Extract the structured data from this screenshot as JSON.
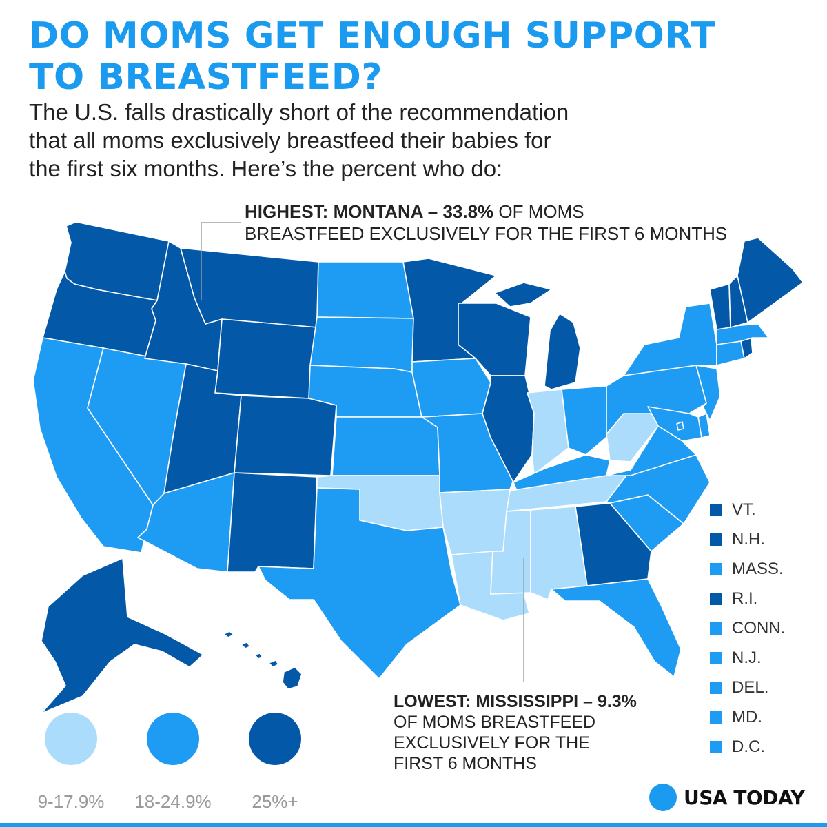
{
  "title_lines": [
    "DO MOMS GET ENOUGH SUPPORT",
    "TO BREASTFEED?"
  ],
  "subtitle_lines": [
    "The U.S. falls drastically short of the recommendation",
    "that all moms exclusively breastfeed their babies for",
    "the first six months. Here’s the percent who do:"
  ],
  "colors": {
    "low": "#acdcfb",
    "mid": "#1e9bf2",
    "high": "#0458a8",
    "title": "#1b9bf0",
    "border": "#ffffff"
  },
  "callout_high": {
    "bold": "HIGHEST: MONTANA – 33.8%",
    "rest_line1": " OF MOMS",
    "line2": "BREASTFEED EXCLUSIVELY FOR THE FIRST 6 MONTHS",
    "state": "MT",
    "value_pct": 33.8
  },
  "callout_low": {
    "bold": "LOWEST: MISSISSIPPI – 9.3%",
    "lines": [
      "OF MOMS BREASTFEED",
      "EXCLUSIVELY FOR THE",
      "FIRST 6 MONTHS"
    ],
    "state": "MS",
    "value_pct": 9.3
  },
  "scale": [
    {
      "label": "9-17.9%",
      "bucket": "low"
    },
    {
      "label": "18-24.9%",
      "bucket": "mid"
    },
    {
      "label": "25%+",
      "bucket": "high"
    }
  ],
  "ne_legend": [
    {
      "label": "VT.",
      "bucket": "high"
    },
    {
      "label": "N.H.",
      "bucket": "high"
    },
    {
      "label": "MASS.",
      "bucket": "mid"
    },
    {
      "label": "R.I.",
      "bucket": "high"
    },
    {
      "label": "CONN.",
      "bucket": "mid"
    },
    {
      "label": "N.J.",
      "bucket": "mid"
    },
    {
      "label": "DEL.",
      "bucket": "mid"
    },
    {
      "label": "MD.",
      "bucket": "mid"
    },
    {
      "label": "D.C.",
      "bucket": "mid"
    }
  ],
  "state_buckets": {
    "WA": "high",
    "OR": "high",
    "ID": "high",
    "MT": "high",
    "WY": "high",
    "UT": "high",
    "CO": "high",
    "NM": "high",
    "MN": "high",
    "WI": "high",
    "MI": "high",
    "IL": "high",
    "GA": "high",
    "ME": "high",
    "VT": "high",
    "NH": "high",
    "RI": "high",
    "AK": "high",
    "HI": "high",
    "CA": "mid",
    "NV": "mid",
    "AZ": "mid",
    "ND": "mid",
    "SD": "mid",
    "NE": "mid",
    "KS": "mid",
    "TX": "mid",
    "IA": "mid",
    "MO": "mid",
    "OH": "mid",
    "KY": "mid",
    "VA": "mid",
    "NC": "mid",
    "SC": "mid",
    "FL": "mid",
    "PA": "mid",
    "NY": "mid",
    "MA": "mid",
    "CT": "mid",
    "NJ": "mid",
    "DE": "mid",
    "MD": "mid",
    "DC": "mid",
    "IN": "low",
    "WV": "low",
    "OK": "low",
    "AR": "low",
    "LA": "low",
    "MS": "low",
    "AL": "low",
    "TN": "low"
  },
  "brand": "USA TODAY"
}
